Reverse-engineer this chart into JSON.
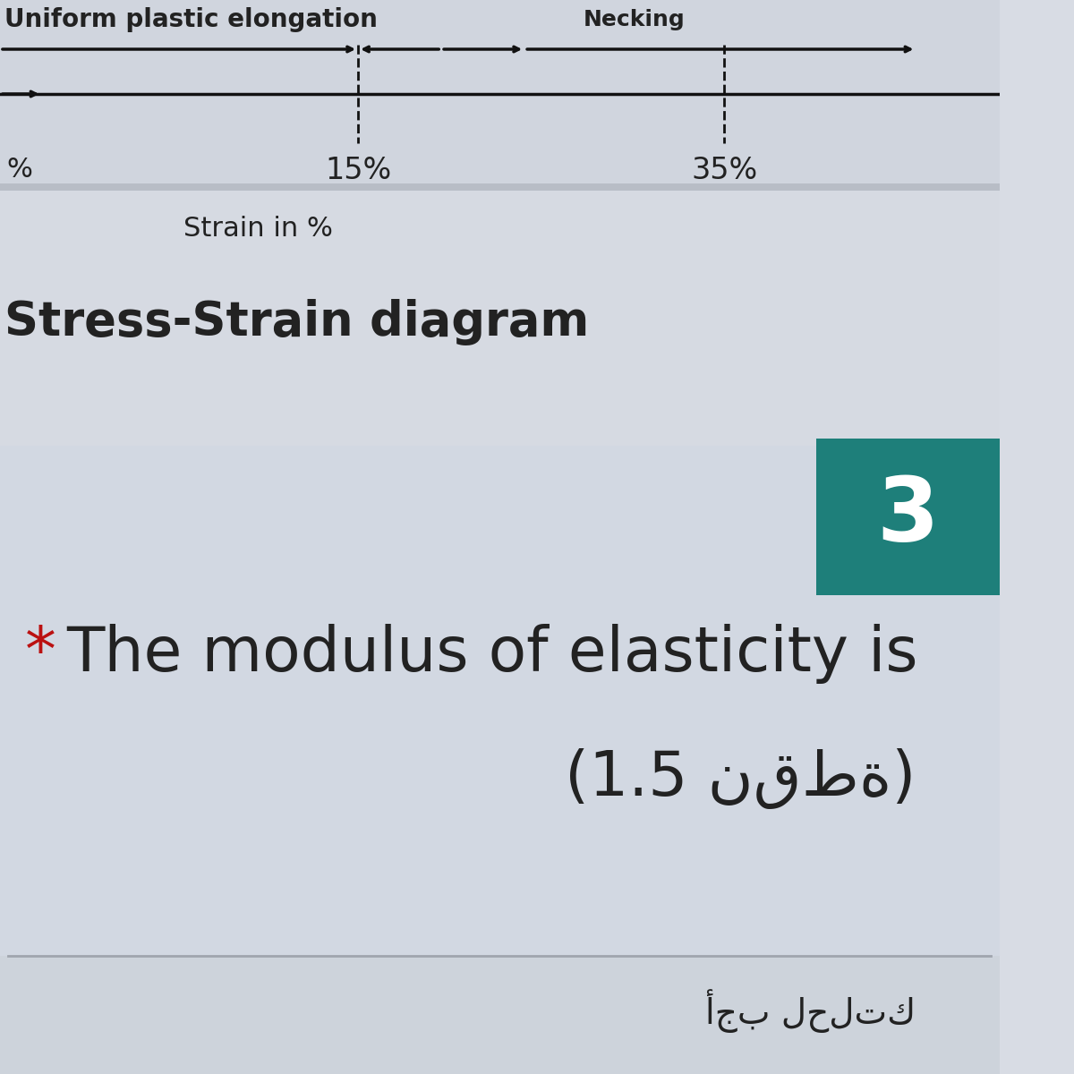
{
  "bg_color_main": "#d8dce4",
  "bg_color_top_strip": "#cdd1d9",
  "bg_color_question": "#d4d9e2",
  "bg_color_bottom": "#cdd3db",
  "teal_box_color": "#1e7f7a",
  "teal_box_number": "3",
  "uniform_plastic_label": "Uniform plastic elongation",
  "necking_label": "Necking",
  "percent_15": "15%",
  "percent_35": "35%",
  "strain_label": "Strain in %",
  "diagram_label": "Stress-Strain diagram",
  "star_color": "#bb1111",
  "question_line1_prefix": "* The modulus of elasticity is",
  "question_line2": "(1.5 نقطة)",
  "main_text_color": "#222222",
  "arrow_color": "#111111",
  "bottom_arabic": "أجب لحلتك"
}
